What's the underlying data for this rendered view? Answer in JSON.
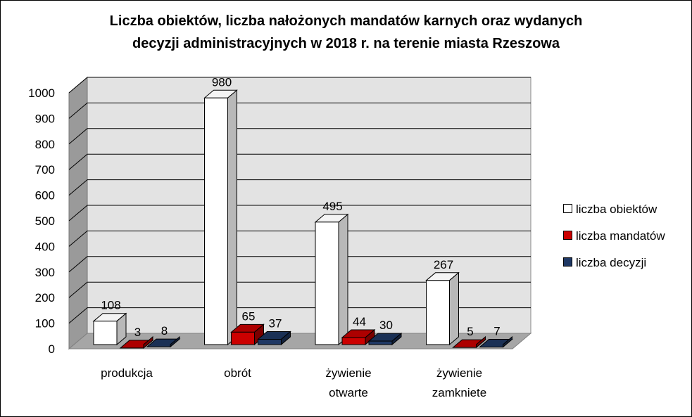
{
  "chart_data": {
    "type": "bar",
    "title_lines": [
      "Liczba obiektów, liczba nałożonych mandatów karnych oraz wydanych",
      "decyzji administracyjnych w 2018 r. na terenie miasta Rzeszowa"
    ],
    "categories": [
      [
        "produkcja"
      ],
      [
        "obrót"
      ],
      [
        "żywienie",
        "otwarte"
      ],
      [
        "żywienie",
        "zamkniete"
      ]
    ],
    "series": [
      {
        "name": "liczba obiektów",
        "values": [
          108,
          980,
          495,
          267
        ],
        "color": "#ffffff"
      },
      {
        "name": "liczba mandatów",
        "values": [
          3,
          65,
          44,
          5
        ],
        "color": "#cc0000"
      },
      {
        "name": "liczba decyzji",
        "values": [
          8,
          37,
          30,
          7
        ],
        "color": "#1f3864"
      }
    ],
    "ylim": [
      0,
      1000
    ],
    "yticks": [
      0,
      100,
      200,
      300,
      400,
      500,
      600,
      700,
      800,
      900,
      1000
    ],
    "grid": true,
    "legend_position": "right",
    "style": "3d-column"
  }
}
